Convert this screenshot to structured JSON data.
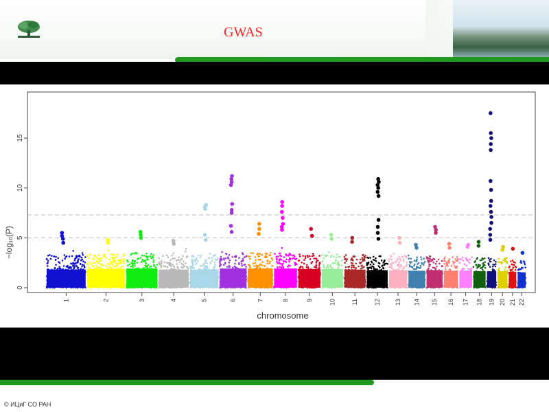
{
  "slide": {
    "title": "GWAS",
    "footer": "© ИЦиГ СО РАН"
  },
  "colors": {
    "accent_green": "#1f9a1f",
    "title_red": "#ff2020",
    "band_black": "#000000"
  },
  "chart_data": {
    "type": "scatter",
    "subtype": "manhattan",
    "xlabel": "chromosome",
    "ylabel": "−log₁₀(P)",
    "ylim": [
      0,
      19
    ],
    "yticks": [
      0,
      5,
      10,
      15
    ],
    "threshold_lines": [
      7.3,
      5.0
    ],
    "grid": false,
    "chromosomes": [
      {
        "label": "1",
        "color": "#1010d0",
        "base": 3.3,
        "peaks": [
          5.5,
          5.2,
          4.9,
          4.5
        ]
      },
      {
        "label": "2",
        "color": "#ffff00",
        "base": 3.4,
        "peaks": [
          4.8,
          4.5,
          4.6
        ]
      },
      {
        "label": "3",
        "color": "#10ee10",
        "base": 3.5,
        "peaks": [
          5.6,
          5.3,
          5.0
        ]
      },
      {
        "label": "4",
        "color": "#b8b8b8",
        "base": 3.3,
        "peaks": [
          4.7,
          4.4
        ]
      },
      {
        "label": "5",
        "color": "#a8d8e8",
        "base": 3.3,
        "peaks": [
          8.3,
          8.1,
          7.9,
          5.3,
          4.8
        ]
      },
      {
        "label": "6",
        "color": "#a030e0",
        "base": 3.5,
        "peaks": [
          11.2,
          10.9,
          10.6,
          10.3,
          8.4,
          7.8,
          7.5,
          6.2,
          5.6
        ]
      },
      {
        "label": "7",
        "color": "#ff9000",
        "base": 3.5,
        "peaks": [
          6.4,
          5.9,
          5.4
        ]
      },
      {
        "label": "8",
        "color": "#ff00ff",
        "base": 3.5,
        "peaks": [
          8.6,
          8.2,
          7.6,
          7.0,
          6.4,
          5.8,
          6.1
        ]
      },
      {
        "label": "9",
        "color": "#d80020",
        "base": 3.4,
        "peaks": [
          5.9,
          5.2
        ]
      },
      {
        "label": "10",
        "color": "#98ee98",
        "base": 3.4,
        "peaks": [
          5.3,
          4.9
        ]
      },
      {
        "label": "11",
        "color": "#a82828",
        "base": 3.3,
        "peaks": [
          5.0,
          4.6
        ]
      },
      {
        "label": "12",
        "color": "#000000",
        "base": 3.2,
        "peaks": [
          10.9,
          10.6,
          10.3,
          10.0,
          9.6,
          9.2,
          6.8,
          6.1,
          5.5,
          4.9
        ]
      },
      {
        "label": "13",
        "color": "#ffb0c0",
        "base": 3.2,
        "peaks": [
          5.0,
          4.5
        ]
      },
      {
        "label": "14",
        "color": "#4080b0",
        "base": 3.1,
        "peaks": [
          4.3,
          4.0
        ]
      },
      {
        "label": "15",
        "color": "#c03070",
        "base": 3.2,
        "peaks": [
          6.1,
          5.8,
          5.5
        ]
      },
      {
        "label": "16",
        "color": "#ff8070",
        "base": 3.1,
        "peaks": [
          4.4,
          4.0
        ]
      },
      {
        "label": "17",
        "color": "#ff80ff",
        "base": 3.1,
        "peaks": [
          4.3,
          4.1
        ]
      },
      {
        "label": "18",
        "color": "#106010",
        "base": 3.0,
        "peaks": [
          4.6,
          4.2
        ]
      },
      {
        "label": "19",
        "color": "#10107a",
        "base": 3.0,
        "peaks": [
          17.5,
          15.5,
          15.0,
          14.4,
          13.8,
          10.7,
          9.8,
          8.7,
          8.2,
          7.6,
          7.1,
          6.5,
          5.9,
          5.3,
          4.8
        ]
      },
      {
        "label": "20",
        "color": "#e0d000",
        "base": 3.0,
        "peaks": [
          4.1,
          3.8
        ]
      },
      {
        "label": "21",
        "color": "#e01010",
        "base": 2.9,
        "peaks": [
          3.9
        ]
      },
      {
        "label": "22",
        "color": "#1030d0",
        "base": 2.8,
        "peaks": [
          3.5
        ]
      }
    ]
  }
}
